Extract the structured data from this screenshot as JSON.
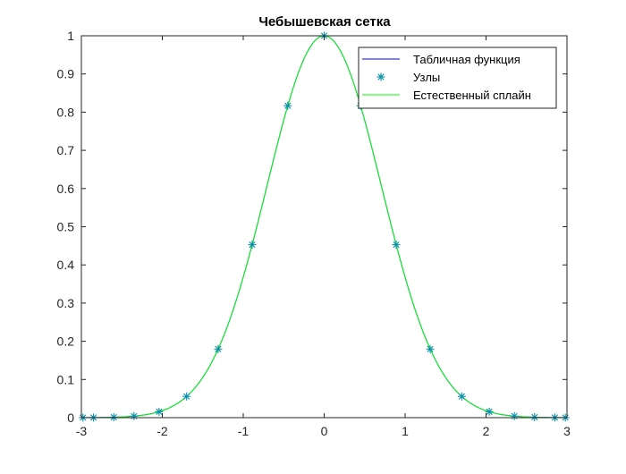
{
  "chart_data": {
    "type": "line",
    "title": "Чебышевская сетка",
    "xlabel": "",
    "ylabel": "",
    "xlim": [
      -3,
      3
    ],
    "ylim": [
      0,
      1
    ],
    "xticks": [
      "-3",
      "-2",
      "-1",
      "0",
      "1",
      "2",
      "3"
    ],
    "yticks": [
      "0",
      "0.1",
      "0.2",
      "0.3",
      "0.4",
      "0.5",
      "0.6",
      "0.7",
      "0.8",
      "0.9",
      "1"
    ],
    "grid": false,
    "legend_position": "top-right",
    "function": "exp(-x^2)",
    "series": [
      {
        "name": "Табличная функция",
        "style": "line",
        "color": "#0000ff"
      },
      {
        "name": "Узлы",
        "style": "markers",
        "marker": "*",
        "color": "#0a8fa8",
        "x": [
          -2.98,
          -2.85,
          -2.6,
          -2.35,
          -2.04,
          -1.7,
          -1.31,
          -0.89,
          -0.45,
          0.0,
          0.45,
          0.89,
          1.31,
          1.7,
          2.04,
          2.35,
          2.6,
          2.85,
          2.98
        ],
        "y": [
          0.0001,
          0.0003,
          0.0012,
          0.004,
          0.0155,
          0.0556,
          0.1796,
          0.4529,
          0.8167,
          1.0,
          0.8167,
          0.4529,
          0.1796,
          0.0556,
          0.0155,
          0.004,
          0.0012,
          0.0003,
          0.0001
        ]
      },
      {
        "name": "Естественный сплайн",
        "style": "line",
        "color": "#00ff00"
      }
    ]
  }
}
